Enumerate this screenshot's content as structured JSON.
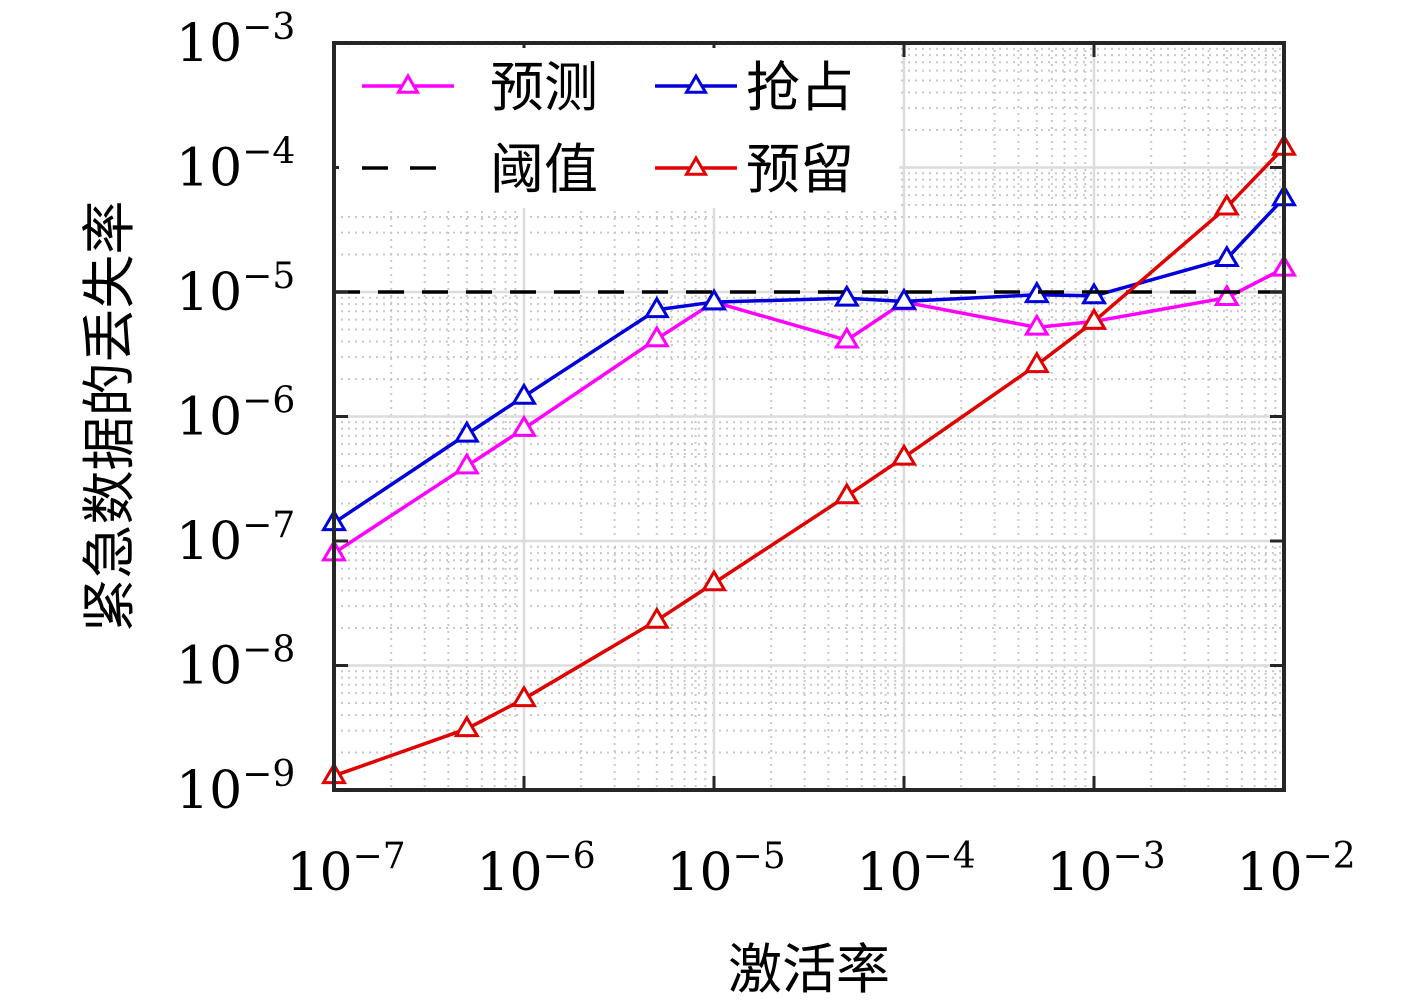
{
  "chart_data": {
    "type": "line",
    "x_scale": "log",
    "y_scale": "log",
    "xlabel": "激活率",
    "ylabel": "紧急数据的丢失率",
    "xlim": [
      1e-07,
      0.01
    ],
    "ylim": [
      1e-09,
      0.001
    ],
    "x_ticks": [
      {
        "base": "10",
        "exp": "−7",
        "value": 1e-07
      },
      {
        "base": "10",
        "exp": "−6",
        "value": 1e-06
      },
      {
        "base": "10",
        "exp": "−5",
        "value": 1e-05
      },
      {
        "base": "10",
        "exp": "−4",
        "value": 0.0001
      },
      {
        "base": "10",
        "exp": "−3",
        "value": 0.001
      },
      {
        "base": "10",
        "exp": "−2",
        "value": 0.01
      }
    ],
    "y_ticks": [
      {
        "base": "10",
        "exp": "−9",
        "value": 1e-09
      },
      {
        "base": "10",
        "exp": "−8",
        "value": 1e-08
      },
      {
        "base": "10",
        "exp": "−7",
        "value": 1e-07
      },
      {
        "base": "10",
        "exp": "−6",
        "value": 1e-06
      },
      {
        "base": "10",
        "exp": "−5",
        "value": 1e-05
      },
      {
        "base": "10",
        "exp": "−4",
        "value": 0.0001
      },
      {
        "base": "10",
        "exp": "−3",
        "value": 0.001
      }
    ],
    "grid": true,
    "minor_grid": true,
    "legend_position": "top-left",
    "x": [
      1e-07,
      5e-07,
      1e-06,
      5e-06,
      1e-05,
      5e-05,
      0.0001,
      0.0005,
      0.001,
      0.005,
      0.01
    ],
    "series": [
      {
        "name": "预测",
        "color": "#ff00ff",
        "marker": "triangle",
        "line": "solid",
        "values": [
          8e-08,
          4e-07,
          8e-07,
          4.2e-06,
          8.3e-06,
          4.1e-06,
          8.3e-06,
          5.2e-06,
          5.8e-06,
          9e-06,
          1.55e-05
        ]
      },
      {
        "name": "抢占",
        "color": "#0000dd",
        "marker": "triangle",
        "line": "solid",
        "values": [
          1.4e-07,
          7.2e-07,
          1.45e-06,
          7.2e-06,
          8.3e-06,
          8.9e-06,
          8.4e-06,
          9.5e-06,
          9.3e-06,
          1.85e-05,
          5.7e-05
        ]
      },
      {
        "name": "阈值",
        "color": "#000000",
        "marker": "none",
        "line": "dashed",
        "values": [
          1e-05,
          1e-05,
          1e-05,
          1e-05,
          1e-05,
          1e-05,
          1e-05,
          1e-05,
          1e-05,
          1e-05,
          1e-05
        ]
      },
      {
        "name": "预留",
        "color": "#e00000",
        "marker": "triangle",
        "line": "solid",
        "values": [
          1.3e-09,
          3.1e-09,
          5.4e-09,
          2.3e-08,
          4.6e-08,
          2.3e-07,
          4.7e-07,
          2.6e-06,
          5.8e-06,
          4.8e-05,
          0.000145
        ]
      }
    ],
    "legend_order": [
      "预测",
      "抢占",
      "阈值",
      "预留"
    ]
  }
}
